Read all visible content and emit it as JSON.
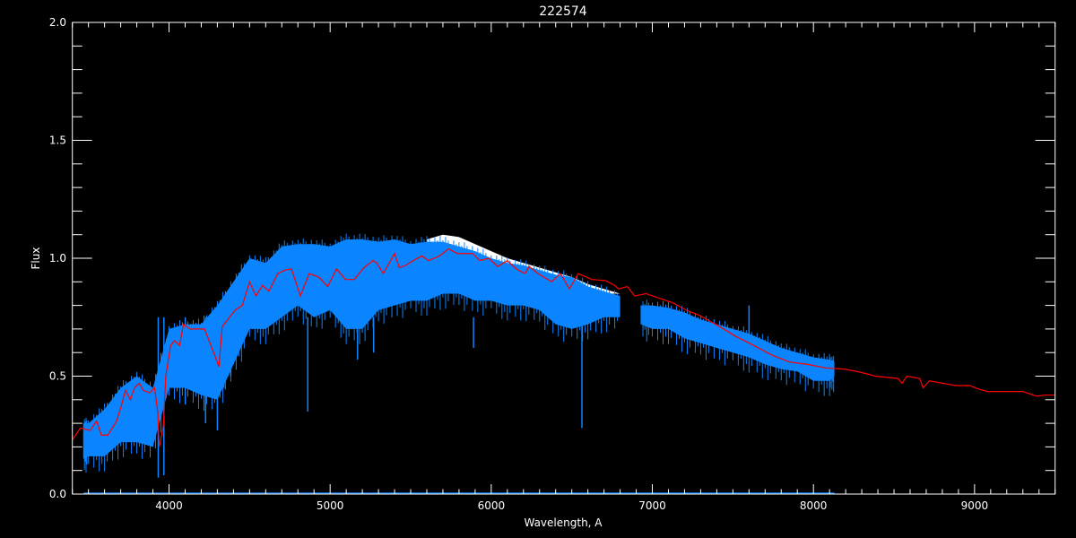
{
  "chart_data": {
    "type": "line",
    "title": "222574",
    "xlabel": "Wavelength, A",
    "ylabel": "Flux",
    "xlim": [
      3400,
      9500
    ],
    "ylim": [
      0.0,
      2.0
    ],
    "x_ticks": [
      "4000",
      "5000",
      "6000",
      "7000",
      "8000",
      "9000"
    ],
    "x_minor_step": 100,
    "y_ticks": [
      "0.0",
      "0.5",
      "1.0",
      "1.5",
      "2.0"
    ],
    "y_minor_step": 0.1,
    "grid": false,
    "background": "#000000",
    "axis_color": "#ffffff",
    "series": [
      {
        "role": "model",
        "color": "#ff0000",
        "x": [
          3400,
          3450,
          3510,
          3550,
          3580,
          3620,
          3675,
          3700,
          3730,
          3760,
          3785,
          3815,
          3840,
          3880,
          3910,
          3930,
          3940,
          3965,
          3980,
          4010,
          4035,
          4065,
          4090,
          4130,
          4175,
          4220,
          4260,
          4310,
          4330,
          4370,
          4410,
          4455,
          4500,
          4540,
          4580,
          4620,
          4675,
          4720,
          4760,
          4815,
          4870,
          4930,
          4985,
          5040,
          5095,
          5150,
          5210,
          5265,
          5290,
          5330,
          5400,
          5430,
          5470,
          5515,
          5570,
          5610,
          5680,
          5735,
          5790,
          5885,
          5930,
          5985,
          6040,
          6100,
          6155,
          6210,
          6235,
          6290,
          6375,
          6430,
          6485,
          6540,
          6625,
          6710,
          6765,
          6790,
          6845,
          6890,
          6960,
          7045,
          7130,
          7210,
          7295,
          7405,
          7515,
          7630,
          7740,
          7850,
          7965,
          8075,
          8190,
          8270,
          8330,
          8385,
          8525,
          8550,
          8580,
          8660,
          8680,
          8720,
          8800,
          8885,
          8970,
          9025,
          9080,
          9190,
          9300,
          9385,
          9440,
          9500
        ],
        "y": [
          0.23,
          0.28,
          0.27,
          0.31,
          0.25,
          0.25,
          0.31,
          0.365,
          0.44,
          0.4,
          0.45,
          0.47,
          0.44,
          0.43,
          0.45,
          0.35,
          0.2,
          0.29,
          0.5,
          0.63,
          0.65,
          0.63,
          0.72,
          0.7,
          0.7,
          0.7,
          0.63,
          0.54,
          0.71,
          0.745,
          0.78,
          0.8,
          0.9,
          0.84,
          0.885,
          0.86,
          0.935,
          0.95,
          0.955,
          0.84,
          0.935,
          0.92,
          0.88,
          0.955,
          0.91,
          0.91,
          0.96,
          0.99,
          0.98,
          0.935,
          1.02,
          0.96,
          0.97,
          0.99,
          1.01,
          0.99,
          1.01,
          1.04,
          1.02,
          1.02,
          0.99,
          1.0,
          0.965,
          0.99,
          0.955,
          0.935,
          0.965,
          0.935,
          0.9,
          0.935,
          0.87,
          0.935,
          0.91,
          0.905,
          0.885,
          0.87,
          0.88,
          0.84,
          0.85,
          0.83,
          0.81,
          0.78,
          0.757,
          0.715,
          0.67,
          0.63,
          0.59,
          0.56,
          0.55,
          0.535,
          0.53,
          0.52,
          0.51,
          0.5,
          0.49,
          0.47,
          0.5,
          0.49,
          0.45,
          0.48,
          0.47,
          0.46,
          0.46,
          0.445,
          0.435,
          0.435,
          0.435,
          0.415,
          0.42,
          0.42
        ]
      },
      {
        "role": "observed",
        "color": "#0a84ff",
        "segments": [
          {
            "x": [
              3470,
              3500,
              3600,
              3700,
              3800,
              3900,
              4000,
              4100,
              4200,
              4300,
              4400,
              4500,
              4600,
              4700,
              4800,
              4900,
              5000,
              5100,
              5200,
              5300,
              5400,
              5500,
              5600,
              5700,
              5800,
              5900,
              6000,
              6100,
              6200,
              6300,
              6400,
              6500,
              6600,
              6700,
              6800
            ],
            "upper": [
              0.3,
              0.3,
              0.36,
              0.45,
              0.5,
              0.45,
              0.7,
              0.72,
              0.72,
              0.8,
              0.9,
              1.0,
              0.98,
              1.05,
              1.06,
              1.06,
              1.05,
              1.08,
              1.08,
              1.07,
              1.08,
              1.06,
              1.07,
              1.07,
              1.05,
              1.03,
              1.0,
              0.98,
              0.97,
              0.95,
              0.93,
              0.92,
              0.88,
              0.86,
              0.84
            ],
            "lower": [
              0.15,
              0.16,
              0.16,
              0.22,
              0.22,
              0.2,
              0.45,
              0.45,
              0.42,
              0.4,
              0.55,
              0.7,
              0.7,
              0.75,
              0.8,
              0.75,
              0.78,
              0.7,
              0.7,
              0.78,
              0.8,
              0.82,
              0.82,
              0.85,
              0.85,
              0.82,
              0.82,
              0.8,
              0.8,
              0.78,
              0.72,
              0.7,
              0.72,
              0.75,
              0.75
            ]
          },
          {
            "x": [
              6930,
              7000,
              7100,
              7200,
              7300,
              7400,
              7500,
              7600,
              7700,
              7800,
              7900,
              8000,
              8100,
              8130
            ],
            "upper": [
              0.8,
              0.8,
              0.79,
              0.77,
              0.74,
              0.72,
              0.7,
              0.68,
              0.65,
              0.62,
              0.6,
              0.58,
              0.57,
              0.56
            ],
            "lower": [
              0.72,
              0.7,
              0.7,
              0.66,
              0.64,
              0.62,
              0.6,
              0.58,
              0.55,
              0.53,
              0.52,
              0.48,
              0.48,
              0.5
            ]
          }
        ],
        "lines": [
          {
            "x": 3933,
            "y": 0.07
          },
          {
            "x": 3968,
            "y": 0.08
          },
          {
            "x": 4101,
            "y": 0.38
          },
          {
            "x": 4227,
            "y": 0.3
          },
          {
            "x": 4300,
            "y": 0.27
          },
          {
            "x": 4340,
            "y": 0.45
          },
          {
            "x": 4383,
            "y": 0.5
          },
          {
            "x": 4861,
            "y": 0.35
          },
          {
            "x": 5170,
            "y": 0.57
          },
          {
            "x": 5270,
            "y": 0.6
          },
          {
            "x": 5890,
            "y": 0.62
          },
          {
            "x": 6563,
            "y": 0.28
          },
          {
            "x": 7600,
            "y": 0.8
          }
        ]
      },
      {
        "role": "observed-alt",
        "color": "#ffffff",
        "x": [
          5600,
          5700,
          5800,
          5900,
          6000,
          6100,
          6200,
          6300,
          6400,
          6500,
          6600,
          6700,
          6800
        ],
        "upper": [
          1.08,
          1.1,
          1.09,
          1.06,
          1.03,
          1.0,
          0.98,
          0.96,
          0.94,
          0.92,
          0.89,
          0.87,
          0.85
        ]
      },
      {
        "role": "error",
        "color": "#0a84ff",
        "x": [
          3470,
          8130
        ],
        "y": [
          0.0,
          0.0
        ]
      }
    ]
  }
}
